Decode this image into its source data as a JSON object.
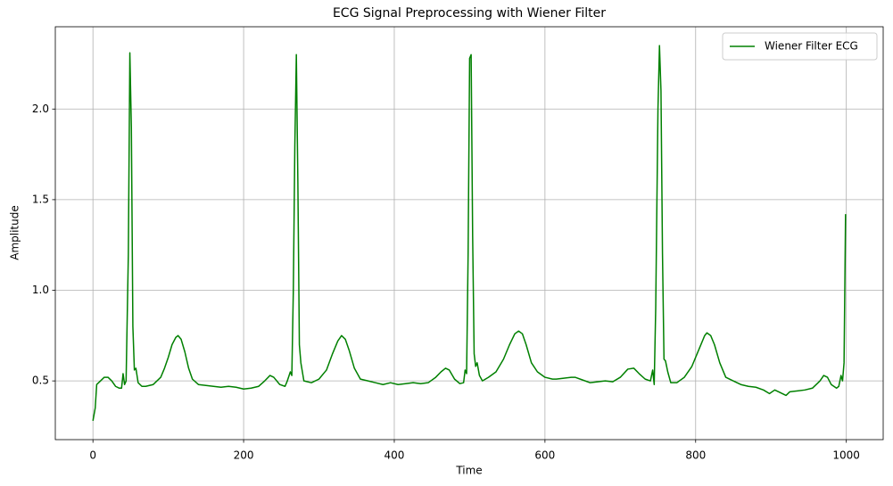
{
  "chart_data": {
    "type": "line",
    "title": "ECG Signal Preprocessing with Wiener Filter",
    "xlabel": "Time",
    "ylabel": "Amplitude",
    "x": [
      0,
      3,
      5,
      10,
      15,
      20,
      25,
      30,
      35,
      38,
      40,
      42,
      44,
      47,
      49,
      51,
      53,
      55,
      57,
      60,
      65,
      70,
      80,
      90,
      95,
      100,
      105,
      110,
      113,
      117,
      122,
      127,
      132,
      140,
      150,
      160,
      170,
      180,
      190,
      200,
      210,
      220,
      228,
      235,
      240,
      248,
      255,
      258,
      262,
      264,
      266,
      268,
      270,
      272,
      274,
      276,
      278,
      280,
      290,
      300,
      310,
      318,
      325,
      330,
      335,
      340,
      347,
      355,
      365,
      375,
      385,
      395,
      405,
      415,
      425,
      435,
      445,
      455,
      462,
      468,
      473,
      480,
      487,
      492,
      494,
      496,
      498,
      500,
      502,
      504,
      506,
      508,
      510,
      513,
      517,
      525,
      535,
      545,
      553,
      560,
      565,
      570,
      575,
      582,
      590,
      600,
      610,
      615,
      625,
      635,
      640,
      650,
      660,
      670,
      680,
      690,
      700,
      710,
      718,
      725,
      733,
      740,
      743,
      745,
      747,
      750,
      752,
      754,
      756,
      758,
      760,
      763,
      767,
      775,
      785,
      795,
      805,
      812,
      815,
      820,
      825,
      832,
      840,
      850,
      860,
      870,
      880,
      890,
      898,
      905,
      910,
      920,
      925,
      935,
      945,
      955,
      965,
      970,
      975,
      980,
      987,
      990,
      993,
      995,
      997,
      999
    ],
    "series": [
      {
        "name": "Wiener Filter ECG",
        "color": "#008000",
        "values": [
          0.28,
          0.35,
          0.48,
          0.5,
          0.52,
          0.52,
          0.5,
          0.47,
          0.46,
          0.46,
          0.54,
          0.48,
          0.5,
          1.2,
          2.31,
          1.9,
          0.8,
          0.56,
          0.57,
          0.49,
          0.47,
          0.47,
          0.48,
          0.52,
          0.57,
          0.63,
          0.7,
          0.74,
          0.75,
          0.73,
          0.66,
          0.57,
          0.51,
          0.48,
          0.475,
          0.47,
          0.465,
          0.47,
          0.465,
          0.455,
          0.46,
          0.47,
          0.5,
          0.53,
          0.52,
          0.48,
          0.47,
          0.5,
          0.55,
          0.53,
          1.0,
          1.8,
          2.3,
          1.6,
          0.7,
          0.6,
          0.55,
          0.5,
          0.49,
          0.51,
          0.56,
          0.65,
          0.72,
          0.75,
          0.73,
          0.67,
          0.57,
          0.51,
          0.5,
          0.49,
          0.48,
          0.49,
          0.48,
          0.485,
          0.49,
          0.485,
          0.49,
          0.52,
          0.55,
          0.57,
          0.56,
          0.51,
          0.485,
          0.49,
          0.56,
          0.54,
          1.2,
          2.28,
          2.3,
          1.3,
          0.65,
          0.58,
          0.6,
          0.53,
          0.5,
          0.52,
          0.55,
          0.62,
          0.7,
          0.76,
          0.775,
          0.76,
          0.7,
          0.6,
          0.55,
          0.52,
          0.51,
          0.51,
          0.515,
          0.52,
          0.52,
          0.505,
          0.49,
          0.495,
          0.5,
          0.495,
          0.52,
          0.565,
          0.57,
          0.54,
          0.51,
          0.5,
          0.56,
          0.48,
          0.9,
          2.0,
          2.35,
          2.1,
          1.2,
          0.62,
          0.61,
          0.55,
          0.49,
          0.49,
          0.52,
          0.58,
          0.68,
          0.75,
          0.765,
          0.75,
          0.7,
          0.6,
          0.52,
          0.5,
          0.48,
          0.47,
          0.465,
          0.45,
          0.43,
          0.45,
          0.44,
          0.42,
          0.44,
          0.445,
          0.45,
          0.46,
          0.5,
          0.53,
          0.52,
          0.48,
          0.46,
          0.47,
          0.53,
          0.5,
          0.6,
          1.42
        ]
      }
    ],
    "xlim": [
      -49.95,
      1048.95
    ],
    "ylim": [
      0.176,
      2.454
    ],
    "xticks": [
      0,
      200,
      400,
      600,
      800,
      1000
    ],
    "yticks": [
      0.5,
      {
        "value": 1.0,
        "label": "1.0"
      },
      1.5,
      {
        "value": 2.0,
        "label": "2.0"
      }
    ],
    "grid": true,
    "legend": "upper right"
  }
}
